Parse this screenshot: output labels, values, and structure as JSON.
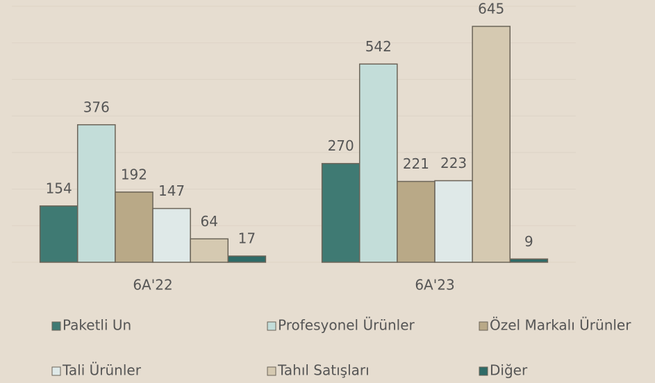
{
  "chart_data": {
    "type": "bar",
    "categories": [
      "6A'22",
      "6A'23"
    ],
    "series": [
      {
        "name": "Paketli Un",
        "color": "#3f7a73",
        "values": [
          154,
          270
        ]
      },
      {
        "name": "Profesyonel Ürünler",
        "color": "#c3ddd9",
        "values": [
          376,
          542
        ]
      },
      {
        "name": "Özel Markalı Ürünler",
        "color": "#b9a987",
        "values": [
          192,
          221
        ]
      },
      {
        "name": "Tali Ürünler",
        "color": "#dfe9e8",
        "values": [
          147,
          223
        ]
      },
      {
        "name": "Tahıl Satışları",
        "color": "#d5c9b1",
        "values": [
          64,
          645
        ]
      },
      {
        "name": "Diğer",
        "color": "#2f6b67",
        "values": [
          17,
          9
        ]
      }
    ],
    "ylim": [
      0,
      700
    ],
    "yticks": [
      0,
      100,
      200,
      300,
      400,
      500,
      600,
      700
    ],
    "grid": true
  }
}
